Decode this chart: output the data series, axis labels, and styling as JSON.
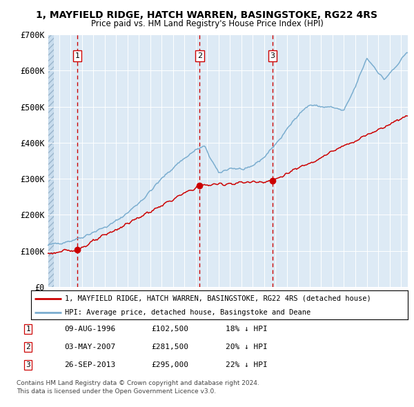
{
  "title_line1": "1, MAYFIELD RIDGE, HATCH WARREN, BASINGSTOKE, RG22 4RS",
  "title_line2": "Price paid vs. HM Land Registry's House Price Index (HPI)",
  "sale_prices": [
    102500,
    281500,
    295000
  ],
  "sale_years_float": [
    1996.607,
    2007.336,
    2013.74
  ],
  "sale_labels": [
    "1",
    "2",
    "3"
  ],
  "sale_table": [
    {
      "label": "1",
      "date": "09-AUG-1996",
      "price": "£102,500",
      "pct": "18% ↓ HPI"
    },
    {
      "label": "2",
      "date": "03-MAY-2007",
      "price": "£281,500",
      "pct": "20% ↓ HPI"
    },
    {
      "label": "3",
      "date": "26-SEP-2013",
      "price": "£295,000",
      "pct": "22% ↓ HPI"
    }
  ],
  "legend_line1": "1, MAYFIELD RIDGE, HATCH WARREN, BASINGSTOKE, RG22 4RS (detached house)",
  "legend_line2": "HPI: Average price, detached house, Basingstoke and Deane",
  "footnote_line1": "Contains HM Land Registry data © Crown copyright and database right 2024.",
  "footnote_line2": "This data is licensed under the Open Government Licence v3.0.",
  "property_color": "#cc0000",
  "hpi_color": "#7aadcf",
  "plot_bg": "#ddeaf5",
  "grid_color": "#ffffff",
  "vline_color": "#cc0000",
  "hatch_color": "#b0c8dd",
  "ylim": [
    0,
    700000
  ],
  "yticks": [
    0,
    100000,
    200000,
    300000,
    400000,
    500000,
    600000,
    700000
  ],
  "ytick_labels": [
    "£0",
    "£100K",
    "£200K",
    "£300K",
    "£400K",
    "£500K",
    "£600K",
    "£700K"
  ],
  "hpi_anchors_t": [
    1994.0,
    1995.0,
    1996.0,
    1997.0,
    1998.0,
    1999.5,
    2001.0,
    2002.5,
    2004.0,
    2005.5,
    2007.0,
    2007.75,
    2009.0,
    2010.0,
    2011.5,
    2013.0,
    2014.5,
    2016.0,
    2017.0,
    2018.0,
    2019.0,
    2020.0,
    2021.0,
    2022.0,
    2022.8,
    2023.5,
    2024.5,
    2025.5
  ],
  "hpi_anchors_v": [
    115000,
    122000,
    128000,
    138000,
    152000,
    172000,
    205000,
    248000,
    300000,
    345000,
    380000,
    390000,
    315000,
    330000,
    325000,
    360000,
    415000,
    480000,
    505000,
    500000,
    498000,
    488000,
    555000,
    635000,
    605000,
    575000,
    608000,
    648000
  ],
  "prop_anchors_t": [
    1994.0,
    1996.607,
    2007.336,
    2013.74,
    2025.5
  ],
  "prop_anchors_v": [
    93000,
    102500,
    281500,
    295000,
    475000
  ],
  "noise_seed_hpi": 42,
  "noise_seed_prop": 123,
  "noise_scale_hpi": 3500,
  "noise_scale_prop": 4000,
  "noise_smooth": 4
}
